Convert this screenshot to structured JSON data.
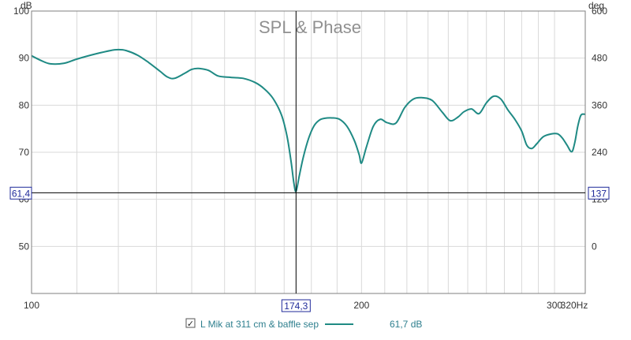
{
  "chart_data": {
    "type": "line",
    "title": "SPL & Phase",
    "y_unit": "dB",
    "y2_unit": "deg",
    "x_scale": "log",
    "xlim": [
      100,
      320
    ],
    "ylim": [
      40,
      100
    ],
    "y2lim": [
      -120,
      600
    ],
    "x_ticks": [
      {
        "value": 100,
        "label": "100"
      },
      {
        "value": 200,
        "label": "200"
      },
      {
        "value": 300,
        "label": "300"
      },
      {
        "value": 320,
        "label": "320Hz"
      }
    ],
    "y_ticks": [
      50,
      60,
      70,
      80,
      90,
      100
    ],
    "y2_ticks": [
      0,
      120,
      240,
      360,
      480,
      600
    ],
    "grid": true,
    "line_color": "#1f8a84",
    "cursor_color": "#1f2a9a",
    "series": [
      {
        "name": "L Mik at 311 cm & baffle sep",
        "legend_value": "61,7 dB",
        "x": [
          100,
          102,
          104,
          107,
          110,
          114,
          118,
          120,
          122,
          125,
          128,
          131,
          133,
          135,
          138,
          140,
          142,
          145,
          148,
          152,
          156,
          160,
          163,
          166,
          169,
          171,
          172.5,
          173.5,
          174.3,
          175.5,
          177,
          179,
          181,
          183,
          185,
          188,
          191,
          194,
          197,
          199,
          200,
          202,
          205,
          208,
          211,
          215,
          219,
          223,
          227,
          232,
          237,
          241,
          245,
          248,
          252,
          256,
          260,
          264,
          268,
          272,
          276,
          280,
          283,
          286,
          289,
          293,
          298,
          302,
          305,
          308,
          311,
          313,
          315,
          317,
          319,
          320
        ],
        "y": [
          90.5,
          89.5,
          88.8,
          88.9,
          89.8,
          90.8,
          91.6,
          91.8,
          91.6,
          90.6,
          89,
          87.2,
          86,
          85.7,
          86.8,
          87.6,
          87.8,
          87.4,
          86.2,
          85.9,
          85.7,
          84.8,
          83.5,
          81.5,
          78,
          73.5,
          68,
          63.5,
          61.7,
          65,
          69,
          73,
          75.6,
          76.8,
          77.2,
          77.3,
          77,
          75.5,
          72.5,
          69.5,
          67.7,
          71,
          75.5,
          77,
          76.3,
          76.2,
          79.5,
          81.3,
          81.6,
          81,
          78.5,
          76.7,
          77.5,
          78.6,
          79.2,
          78.2,
          80.5,
          81.9,
          81.3,
          79,
          77,
          74.5,
          71.5,
          70.8,
          71.8,
          73.3,
          73.9,
          73.9,
          73,
          71.5,
          70.1,
          72,
          75.5,
          77.8,
          78.1,
          78
        ]
      }
    ]
  },
  "cursor": {
    "x_label": "174,3",
    "y_left_label": "61,4",
    "y_right_label": "137"
  },
  "legend": {
    "checked": true,
    "check_glyph": "✓",
    "label": "L Mik at 311 cm & baffle sep",
    "value": "61,7 dB"
  }
}
